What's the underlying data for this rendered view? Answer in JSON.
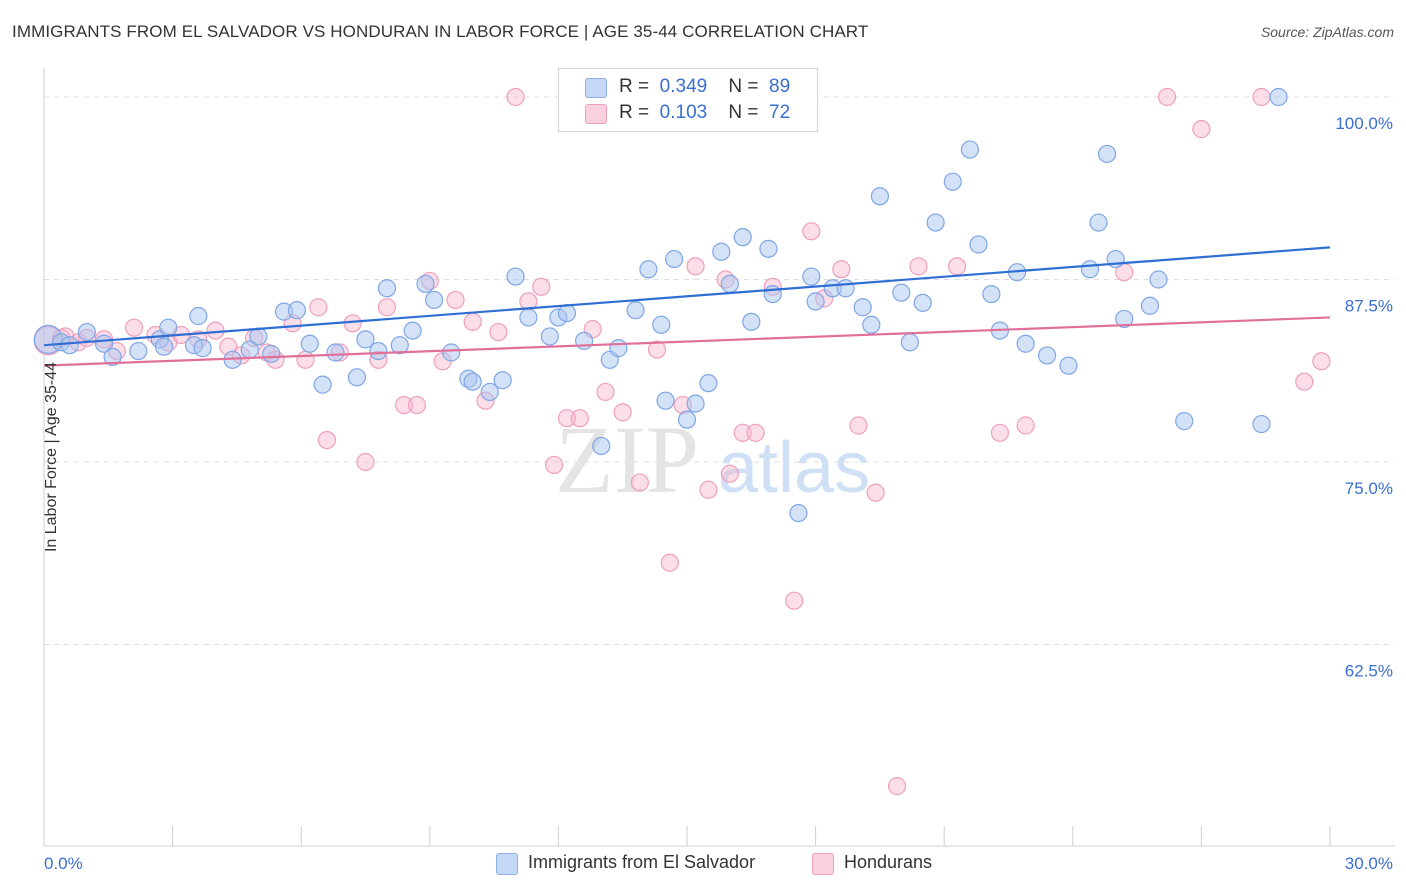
{
  "header": {
    "title": "IMMIGRANTS FROM EL SALVADOR VS HONDURAN IN LABOR FORCE | AGE 35-44 CORRELATION CHART",
    "source": "Source: ZipAtlas.com"
  },
  "legend": {
    "series1": {
      "r_label": "R =",
      "r_value": "0.349",
      "n_label": "N =",
      "n_value": "89"
    },
    "series2": {
      "r_label": "R =",
      "r_value": "0.103",
      "n_label": "N =",
      "n_value": "72"
    }
  },
  "watermark": {
    "zip": "ZIP",
    "atlas": "atlas"
  },
  "chart_data": {
    "type": "scatter",
    "title": "IMMIGRANTS FROM EL SALVADOR VS HONDURAN IN LABOR FORCE | AGE 35-44 CORRELATION CHART",
    "xlabel": "",
    "ylabel": "In Labor Force | Age 35-44",
    "xlim": [
      0,
      30
    ],
    "ylim": [
      50,
      102.5
    ],
    "x_tick_labels": [
      "0.0%",
      "30.0%"
    ],
    "y_ticks": [
      62.5,
      75.0,
      87.5,
      100.0
    ],
    "y_tick_labels": [
      "62.5%",
      "75.0%",
      "87.5%",
      "100.0%"
    ],
    "grid": true,
    "legend_position": "bottom",
    "colors": {
      "series1": "#a9c6f2",
      "series1_line": "#2f6fd4",
      "series2": "#f6b5cb",
      "series2_line": "#e0709a"
    },
    "series": [
      {
        "name": "Immigrants from El Salvador",
        "trend": {
          "x": [
            0,
            30
          ],
          "y": [
            83.0,
            89.7
          ]
        },
        "points": [
          [
            0.1,
            83.4
          ],
          [
            0.4,
            83.2
          ],
          [
            0.6,
            83.0
          ],
          [
            1.0,
            83.9
          ],
          [
            1.4,
            83.1
          ],
          [
            1.6,
            82.2
          ],
          [
            2.2,
            82.6
          ],
          [
            2.7,
            83.4
          ],
          [
            2.8,
            82.9
          ],
          [
            2.9,
            84.2
          ],
          [
            3.5,
            83.0
          ],
          [
            3.6,
            85.0
          ],
          [
            3.7,
            82.8
          ],
          [
            4.4,
            82.0
          ],
          [
            4.8,
            82.7
          ],
          [
            5.0,
            83.6
          ],
          [
            5.3,
            82.4
          ],
          [
            5.6,
            85.3
          ],
          [
            5.9,
            85.4
          ],
          [
            6.2,
            83.1
          ],
          [
            6.5,
            80.3
          ],
          [
            6.8,
            82.5
          ],
          [
            7.3,
            80.8
          ],
          [
            7.5,
            83.4
          ],
          [
            7.8,
            82.6
          ],
          [
            8.0,
            86.9
          ],
          [
            8.3,
            83.0
          ],
          [
            8.6,
            84.0
          ],
          [
            8.9,
            87.2
          ],
          [
            9.1,
            86.1
          ],
          [
            9.5,
            82.5
          ],
          [
            9.9,
            80.7
          ],
          [
            10.0,
            80.5
          ],
          [
            10.4,
            79.8
          ],
          [
            10.7,
            80.6
          ],
          [
            11.0,
            87.7
          ],
          [
            11.3,
            84.9
          ],
          [
            11.8,
            83.6
          ],
          [
            12.0,
            84.9
          ],
          [
            12.2,
            85.2
          ],
          [
            12.6,
            83.3
          ],
          [
            13.0,
            76.1
          ],
          [
            13.2,
            82.0
          ],
          [
            13.4,
            82.8
          ],
          [
            13.8,
            85.4
          ],
          [
            14.1,
            88.2
          ],
          [
            14.4,
            84.4
          ],
          [
            14.5,
            79.2
          ],
          [
            14.7,
            88.9
          ],
          [
            15.0,
            77.9
          ],
          [
            15.2,
            79.0
          ],
          [
            15.5,
            80.4
          ],
          [
            15.8,
            89.4
          ],
          [
            16.0,
            87.2
          ],
          [
            16.3,
            90.4
          ],
          [
            16.5,
            84.6
          ],
          [
            16.9,
            89.6
          ],
          [
            17.0,
            86.5
          ],
          [
            17.6,
            71.5
          ],
          [
            17.9,
            87.7
          ],
          [
            18.0,
            86.0
          ],
          [
            18.4,
            86.9
          ],
          [
            18.7,
            86.9
          ],
          [
            19.1,
            85.6
          ],
          [
            19.3,
            84.4
          ],
          [
            19.5,
            93.2
          ],
          [
            20.0,
            86.6
          ],
          [
            20.2,
            83.2
          ],
          [
            20.5,
            85.9
          ],
          [
            20.8,
            91.4
          ],
          [
            21.2,
            94.2
          ],
          [
            21.6,
            96.4
          ],
          [
            21.8,
            89.9
          ],
          [
            22.1,
            86.5
          ],
          [
            22.3,
            84.0
          ],
          [
            22.7,
            88.0
          ],
          [
            22.9,
            83.1
          ],
          [
            23.4,
            82.3
          ],
          [
            23.9,
            81.6
          ],
          [
            24.4,
            88.2
          ],
          [
            24.6,
            91.4
          ],
          [
            24.8,
            96.1
          ],
          [
            25.0,
            88.9
          ],
          [
            25.2,
            84.8
          ],
          [
            25.8,
            85.7
          ],
          [
            26.0,
            87.5
          ],
          [
            26.6,
            77.8
          ],
          [
            28.4,
            77.6
          ],
          [
            28.8,
            100.0
          ]
        ]
      },
      {
        "name": "Hondurans",
        "trend": {
          "x": [
            0,
            30
          ],
          "y": [
            81.6,
            84.9
          ]
        },
        "points": [
          [
            0.1,
            83.3
          ],
          [
            0.4,
            83.5
          ],
          [
            0.5,
            83.6
          ],
          [
            0.8,
            83.2
          ],
          [
            1.0,
            83.5
          ],
          [
            1.4,
            83.4
          ],
          [
            1.7,
            82.6
          ],
          [
            2.1,
            84.2
          ],
          [
            2.6,
            83.7
          ],
          [
            2.9,
            83.2
          ],
          [
            3.2,
            83.7
          ],
          [
            3.6,
            83.4
          ],
          [
            4.0,
            84.0
          ],
          [
            4.3,
            82.9
          ],
          [
            4.6,
            82.3
          ],
          [
            4.9,
            83.5
          ],
          [
            5.2,
            82.5
          ],
          [
            5.4,
            82.0
          ],
          [
            5.8,
            84.5
          ],
          [
            6.1,
            82.0
          ],
          [
            6.4,
            85.6
          ],
          [
            6.6,
            76.5
          ],
          [
            6.9,
            82.5
          ],
          [
            7.2,
            84.5
          ],
          [
            7.5,
            75.0
          ],
          [
            7.8,
            82.0
          ],
          [
            8.0,
            85.6
          ],
          [
            8.4,
            78.9
          ],
          [
            8.7,
            78.9
          ],
          [
            9.0,
            87.4
          ],
          [
            9.3,
            81.9
          ],
          [
            9.6,
            86.1
          ],
          [
            10.0,
            84.6
          ],
          [
            10.3,
            79.2
          ],
          [
            10.6,
            83.9
          ],
          [
            11.0,
            100.0
          ],
          [
            11.3,
            86.0
          ],
          [
            11.6,
            87.0
          ],
          [
            11.9,
            74.8
          ],
          [
            12.2,
            78.0
          ],
          [
            12.5,
            78.0
          ],
          [
            12.8,
            84.1
          ],
          [
            13.1,
            79.8
          ],
          [
            13.5,
            78.4
          ],
          [
            13.9,
            73.6
          ],
          [
            14.3,
            82.7
          ],
          [
            14.6,
            68.1
          ],
          [
            14.9,
            78.9
          ],
          [
            15.2,
            88.4
          ],
          [
            15.5,
            73.1
          ],
          [
            15.9,
            87.5
          ],
          [
            16.0,
            74.2
          ],
          [
            16.3,
            77.0
          ],
          [
            16.6,
            77.0
          ],
          [
            17.0,
            87.0
          ],
          [
            17.5,
            65.5
          ],
          [
            17.9,
            90.8
          ],
          [
            18.2,
            86.2
          ],
          [
            18.6,
            88.2
          ],
          [
            19.0,
            77.5
          ],
          [
            19.4,
            72.9
          ],
          [
            19.9,
            52.8
          ],
          [
            20.4,
            88.4
          ],
          [
            21.3,
            88.4
          ],
          [
            22.3,
            77.0
          ],
          [
            22.9,
            77.5
          ],
          [
            25.2,
            88.0
          ],
          [
            26.2,
            100.0
          ],
          [
            27.0,
            97.8
          ],
          [
            28.4,
            100.0
          ],
          [
            29.4,
            80.5
          ],
          [
            29.8,
            81.9
          ]
        ]
      }
    ]
  },
  "bottom_legend": {
    "item1": "Immigrants from El Salvador",
    "item2": "Hondurans"
  },
  "y_axis_label": "In Labor Force | Age 35-44"
}
